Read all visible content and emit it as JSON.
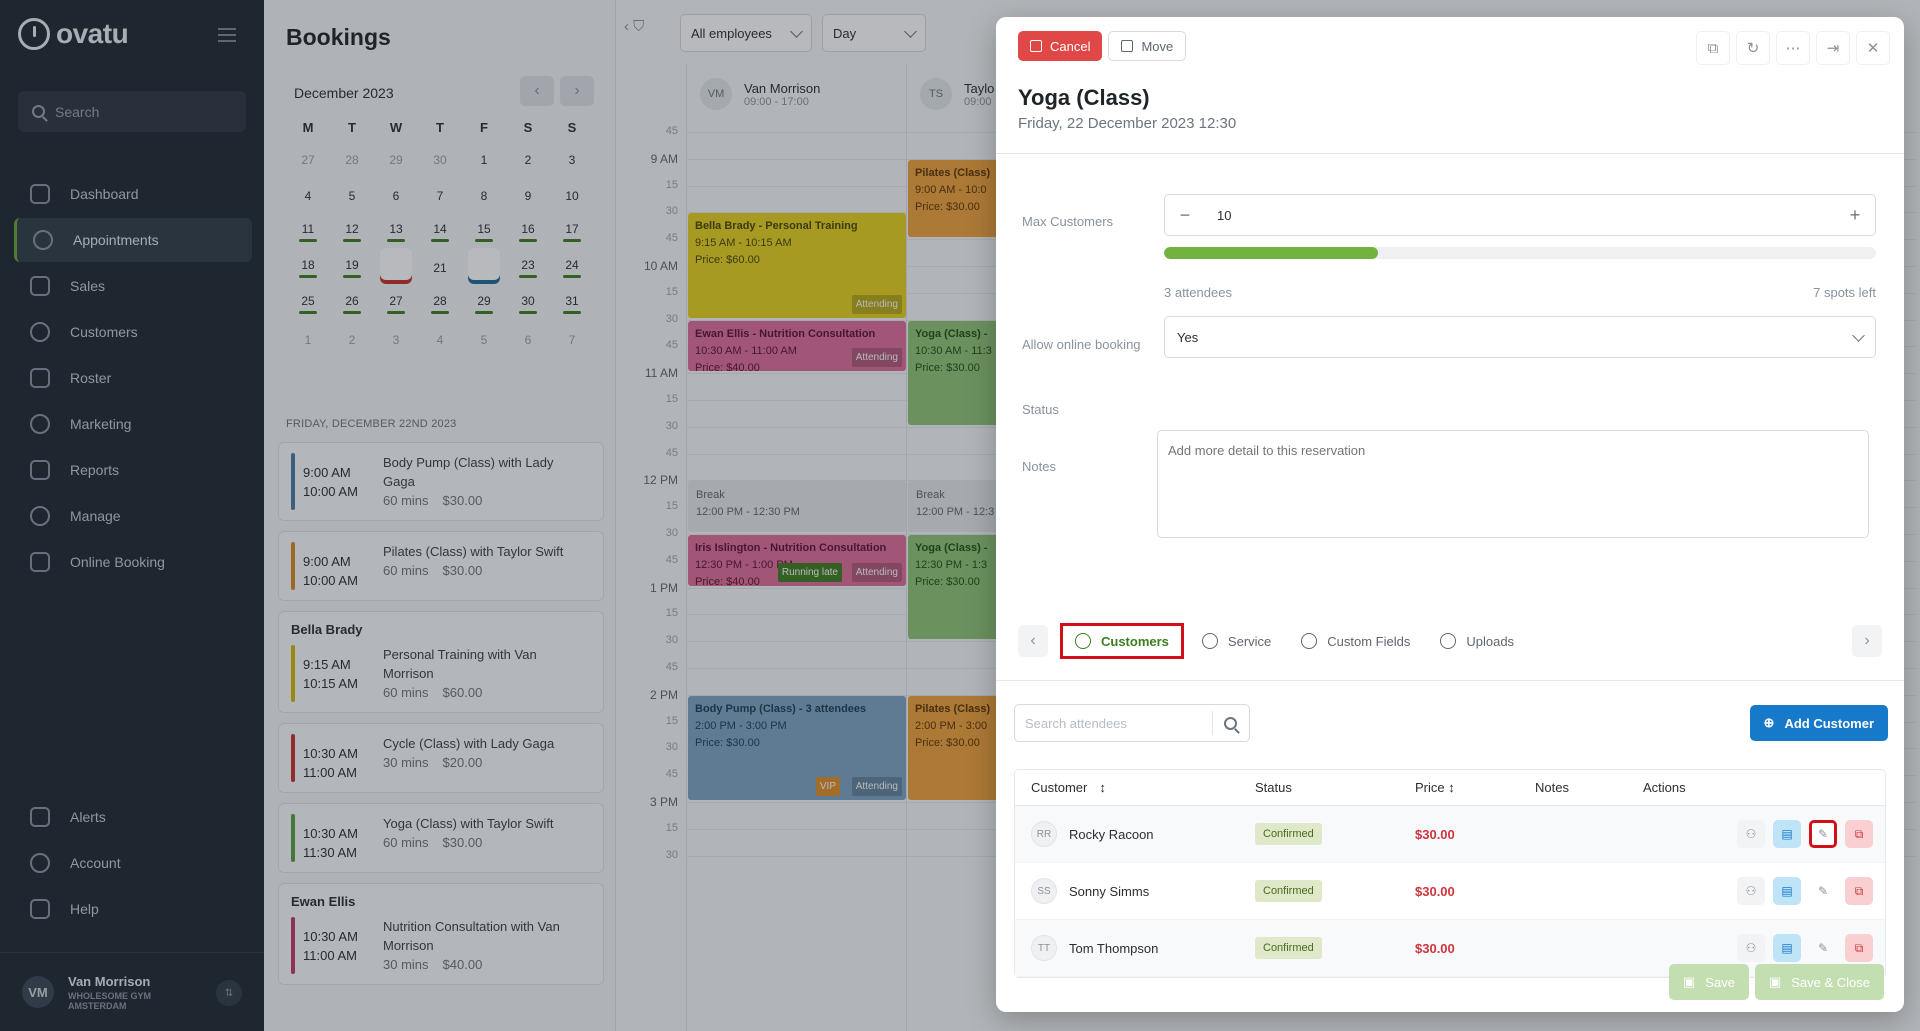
{
  "sidebar": {
    "logo": "ovatu",
    "search_placeholder": "Search",
    "items": [
      {
        "label": "Dashboard",
        "icon": "home-icon"
      },
      {
        "label": "Appointments",
        "icon": "clock-icon",
        "active": true
      },
      {
        "label": "Sales",
        "icon": "tag-icon"
      },
      {
        "label": "Customers",
        "icon": "users-icon"
      },
      {
        "label": "Roster",
        "icon": "calendar-icon"
      },
      {
        "label": "Marketing",
        "icon": "megaphone-icon"
      },
      {
        "label": "Reports",
        "icon": "chart-icon"
      },
      {
        "label": "Manage",
        "icon": "gear-icon"
      },
      {
        "label": "Online Booking",
        "icon": "globe-icon"
      }
    ],
    "bottom_items": [
      {
        "label": "Alerts",
        "icon": "bell-icon"
      },
      {
        "label": "Account",
        "icon": "account-icon"
      },
      {
        "label": "Help",
        "icon": "help-icon"
      }
    ],
    "user": {
      "initials": "VM",
      "name": "Van Morrison",
      "org": "WHOLESOME GYM AMSTERDAM"
    }
  },
  "bookings": {
    "title": "Bookings",
    "calendar": {
      "month": "December 2023",
      "weekdays": [
        "M",
        "T",
        "W",
        "T",
        "F",
        "S",
        "S"
      ],
      "days": [
        {
          "d": "27",
          "m": true
        },
        {
          "d": "28",
          "m": true
        },
        {
          "d": "29",
          "m": true
        },
        {
          "d": "30",
          "m": true
        },
        {
          "d": "1"
        },
        {
          "d": "2"
        },
        {
          "d": "3"
        },
        {
          "d": "4"
        },
        {
          "d": "5"
        },
        {
          "d": "6"
        },
        {
          "d": "7"
        },
        {
          "d": "8"
        },
        {
          "d": "9"
        },
        {
          "d": "10"
        },
        {
          "d": "11",
          "b": true
        },
        {
          "d": "12",
          "b": true
        },
        {
          "d": "13",
          "b": true
        },
        {
          "d": "14",
          "b": true
        },
        {
          "d": "15",
          "b": true
        },
        {
          "d": "16",
          "b": true
        },
        {
          "d": "17",
          "b": true
        },
        {
          "d": "18",
          "b": true
        },
        {
          "d": "19",
          "b": true
        },
        {
          "d": "20",
          "b": true,
          "today": true
        },
        {
          "d": "21"
        },
        {
          "d": "22",
          "b": true,
          "sel": true
        },
        {
          "d": "23",
          "b": true
        },
        {
          "d": "24",
          "b": true
        },
        {
          "d": "25",
          "b": true
        },
        {
          "d": "26",
          "b": true
        },
        {
          "d": "27",
          "b": true
        },
        {
          "d": "28",
          "b": true
        },
        {
          "d": "29",
          "b": true
        },
        {
          "d": "30",
          "b": true
        },
        {
          "d": "31",
          "b": true
        },
        {
          "d": "1",
          "m": true
        },
        {
          "d": "2",
          "m": true
        },
        {
          "d": "3",
          "m": true
        },
        {
          "d": "4",
          "m": true
        },
        {
          "d": "5",
          "m": true
        },
        {
          "d": "6",
          "m": true
        },
        {
          "d": "7",
          "m": true
        }
      ]
    },
    "day_label": "FRIDAY, DECEMBER 22ND 2023",
    "cards": [
      {
        "name": "",
        "start": "9:00 AM",
        "end": "10:00 AM",
        "desc": "Body Pump (Class) with Lady Gaga",
        "dur": "60 mins",
        "price": "$30.00",
        "color": "#4c7ba0"
      },
      {
        "name": "",
        "start": "9:00 AM",
        "end": "10:00 AM",
        "desc": "Pilates (Class) with Taylor Swift",
        "dur": "60 mins",
        "price": "$30.00",
        "color": "#d68a1a"
      },
      {
        "name": "Bella Brady",
        "start": "9:15 AM",
        "end": "10:15 AM",
        "desc": "Personal Training with Van Morrison",
        "dur": "60 mins",
        "price": "$60.00",
        "color": "#d4b800"
      },
      {
        "name": "",
        "start": "10:30 AM",
        "end": "11:00 AM",
        "desc": "Cycle (Class) with Lady Gaga",
        "dur": "30 mins",
        "price": "$20.00",
        "color": "#c9302c"
      },
      {
        "name": "",
        "start": "10:30 AM",
        "end": "11:30 AM",
        "desc": "Yoga (Class) with Taylor Swift",
        "dur": "60 mins",
        "price": "$30.00",
        "color": "#5aa040"
      },
      {
        "name": "Ewan Ellis",
        "start": "10:30 AM",
        "end": "11:00 AM",
        "desc": "Nutrition Consultation with Van Morrison",
        "dur": "30 mins",
        "price": "$40.00",
        "color": "#c0396b"
      }
    ]
  },
  "calendar": {
    "employees_filter": "All employees",
    "view": "Day",
    "employees": [
      {
        "initials": "VM",
        "name": "Van Morrison",
        "hours": "09:00 - 17:00"
      },
      {
        "initials": "TS",
        "name": "Taylo",
        "hours": "09:00"
      }
    ],
    "times": [
      {
        "label": "45",
        "minor": true
      },
      {
        "label": "9 AM"
      },
      {
        "label": "15",
        "minor": true
      },
      {
        "label": "30",
        "minor": true
      },
      {
        "label": "45",
        "minor": true
      },
      {
        "label": "10 AM"
      },
      {
        "label": "15",
        "minor": true
      },
      {
        "label": "30",
        "minor": true
      },
      {
        "label": "45",
        "minor": true
      },
      {
        "label": "11 AM"
      },
      {
        "label": "15",
        "minor": true
      },
      {
        "label": "30",
        "minor": true
      },
      {
        "label": "45",
        "minor": true
      },
      {
        "label": "12 PM"
      },
      {
        "label": "15",
        "minor": true
      },
      {
        "label": "30",
        "minor": true
      },
      {
        "label": "45",
        "minor": true
      },
      {
        "label": "1 PM"
      },
      {
        "label": "15",
        "minor": true
      },
      {
        "label": "30",
        "minor": true
      },
      {
        "label": "45",
        "minor": true
      },
      {
        "label": "2 PM"
      },
      {
        "label": "15",
        "minor": true
      },
      {
        "label": "30",
        "minor": true
      },
      {
        "label": "45",
        "minor": true
      },
      {
        "label": "3 PM"
      },
      {
        "label": "15",
        "minor": true
      },
      {
        "label": "30",
        "minor": true
      }
    ],
    "events": [
      {
        "title": "Bella Brady - Personal Training",
        "time": "9:15 AM - 10:15 AM",
        "price": "Price: $60.00",
        "tag": "Attending",
        "color": "#e6d21d",
        "text": "#4d4400"
      },
      {
        "title": "Pilates (Class)",
        "time": "9:00 AM - 10:0",
        "price": "Price: $30.00",
        "tag": "",
        "color": "#f0a13a",
        "text": "#5a3400"
      },
      {
        "title": "Ewan Ellis - Nutrition Consultation",
        "time": "10:30 AM - 11:00 AM",
        "price": "Price: $40.00",
        "tag": "Attending",
        "color": "#e06d9a",
        "text": "#5a1030"
      },
      {
        "title": "Yoga (Class) -",
        "time": "10:30 AM - 11:3",
        "price": "Price: $30.00",
        "tag": "",
        "color": "#8fc477",
        "text": "#234d10"
      },
      {
        "title": "Iris Islington - Nutrition Consultation",
        "time": "12:30 PM - 1:00 PM",
        "price": "Price: $40.00",
        "tag": "Attending",
        "tag2": "Running late",
        "color": "#e06d9a",
        "text": "#5a1030"
      },
      {
        "title": "Yoga (Class) -",
        "time": "12:30 PM - 1:3",
        "price": "Price: $30.00",
        "tag": "",
        "color": "#8fc477",
        "text": "#234d10"
      },
      {
        "title": "Body Pump (Class) - 3 attendees",
        "time": "2:00 PM - 3:00 PM",
        "price": "Price: $30.00",
        "tag": "Attending",
        "tag2": "VIP",
        "color": "#7ea4c4",
        "text": "#1d3a52"
      },
      {
        "title": "Pilates (Class)",
        "time": "2:00 PM - 3:00",
        "price": "Price: $30.00",
        "tag": "",
        "color": "#f0a13a",
        "text": "#5a3400"
      }
    ],
    "breaks": [
      {
        "title": "Break",
        "time": "12:00 PM - 12:30 PM"
      },
      {
        "title": "Break",
        "time": "12:00 PM - 12:3"
      }
    ]
  },
  "modal": {
    "cancel_label": "Cancel",
    "move_label": "Move",
    "title": "Yoga (Class)",
    "subtitle": "Friday, 22 December 2023 12:30",
    "max_customers_label": "Max Customers",
    "max_customers": "10",
    "attendees_count": 3,
    "attendees_text": "3 attendees",
    "spots_left": "7 spots left",
    "online_booking_label": "Allow online booking",
    "online_booking_value": "Yes",
    "status_label": "Status",
    "notes_label": "Notes",
    "notes_placeholder": "Add more detail to this reservation",
    "tabs": [
      {
        "label": "Customers",
        "icon": "users-icon",
        "active": true
      },
      {
        "label": "Service",
        "icon": "gear-icon"
      },
      {
        "label": "Custom Fields",
        "icon": "list-icon"
      },
      {
        "label": "Uploads",
        "icon": "cloud-upload-icon"
      }
    ],
    "search_placeholder": "Search attendees",
    "add_customer_label": "Add Customer",
    "table": {
      "headers": [
        "Customer",
        "Status",
        "Price",
        "Notes",
        "Actions"
      ],
      "rows": [
        {
          "initials": "RR",
          "name": "Rocky Racoon",
          "status": "Confirmed",
          "price": "$30.00",
          "highlight": true
        },
        {
          "initials": "SS",
          "name": "Sonny Simms",
          "status": "Confirmed",
          "price": "$30.00"
        },
        {
          "initials": "TT",
          "name": "Tom Thompson",
          "status": "Confirmed",
          "price": "$30.00"
        }
      ]
    },
    "save_label": "Save",
    "save_close_label": "Save & Close"
  }
}
